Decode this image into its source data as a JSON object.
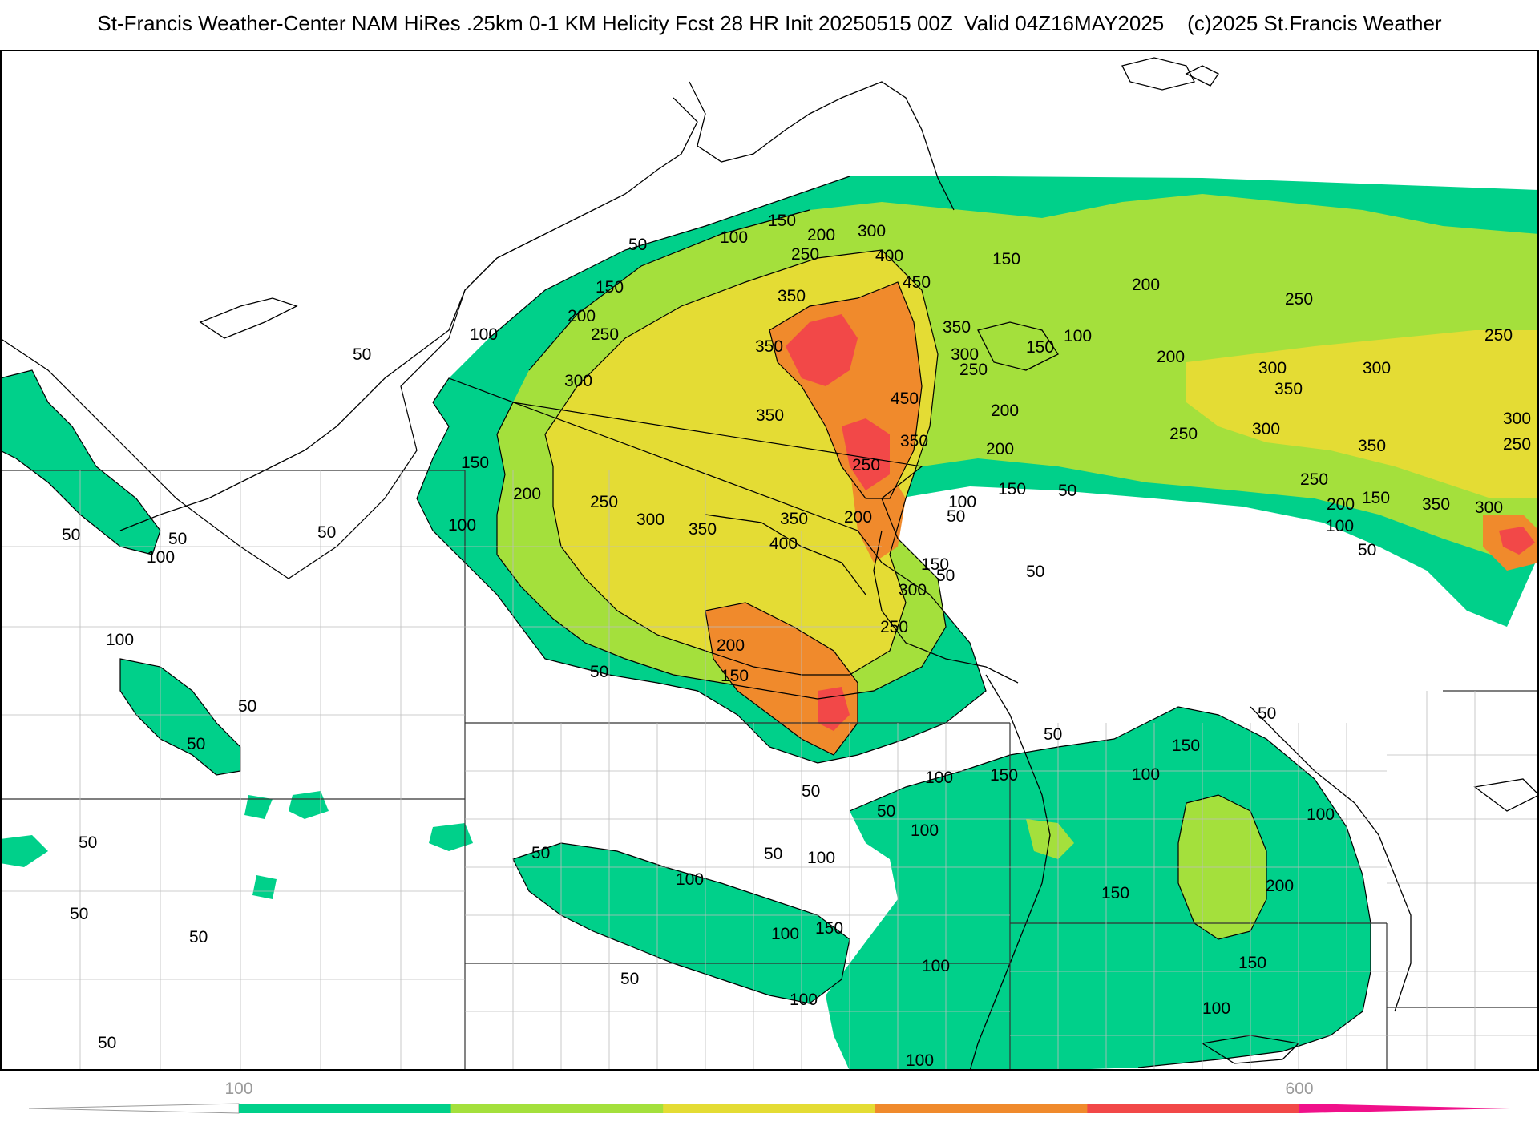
{
  "header": {
    "title": "St-Francis Weather-Center NAM HiRes .25km 0-1 KM Helicity Fcst 28 HR Init 20250515 00Z  Valid 04Z16MAY2025    (c)2025 St.Francis Weather"
  },
  "legend": {
    "tick_labels": [
      "100",
      "600"
    ],
    "colors": [
      "#00d08a",
      "#a4e03c",
      "#e4dc34",
      "#f08a2c",
      "#f24848",
      "#f0108a"
    ]
  },
  "map": {
    "contour_labels": [
      "50",
      "100",
      "150",
      "200",
      "250",
      "300",
      "350",
      "400",
      "450"
    ]
  }
}
